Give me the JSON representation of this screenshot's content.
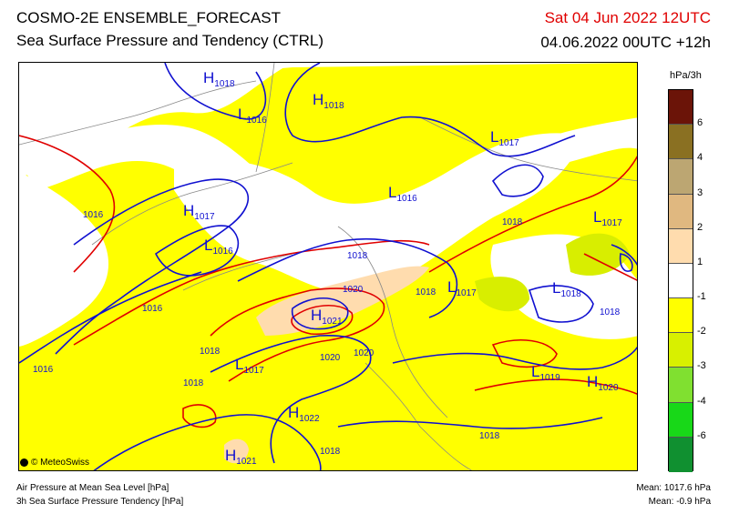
{
  "header": {
    "title_line1": "COSMO-2E ENSEMBLE_FORECAST",
    "title_line2": "Sea Surface Pressure and Tendency (CTRL)",
    "valid_time": "Sat 04 Jun 2022 12UTC",
    "run_time": "04.06.2022 00UTC +12h"
  },
  "legend": {
    "unit": "hPa/3h",
    "ticks": [
      "6",
      "4",
      "3",
      "2",
      "1",
      "-1",
      "-2",
      "-3",
      "-4",
      "-6"
    ],
    "colors": [
      "#6b1408",
      "#8a7022",
      "#bca672",
      "#e0b880",
      "#ffdcae",
      "#ffffff",
      "#ffff00",
      "#d8f000",
      "#80e030",
      "#18d818",
      "#109030"
    ]
  },
  "map": {
    "colors": {
      "low_tendency": "#ffff00",
      "mid_tendency": "#d8ee00",
      "rise_tendency": "#ffdcae",
      "isobar_blue": "#1010d0",
      "isobar_red": "#e00000",
      "terrain_lines": "#888888"
    },
    "pressure_labels": [
      {
        "letter": "H",
        "sub": "1018"
      },
      {
        "letter": "L",
        "sub": "1016"
      },
      {
        "letter": "H",
        "sub": "1018"
      },
      {
        "letter": "L",
        "sub": "1017"
      },
      {
        "letter": "L",
        "sub": "1016"
      },
      {
        "letter": "H",
        "sub": "1017"
      },
      {
        "letter": "L",
        "sub": "1016"
      },
      {
        "letter": "L",
        "sub": "1017"
      },
      {
        "letter": "L",
        "sub": "1018"
      },
      {
        "letter": "H",
        "sub": "1021"
      },
      {
        "letter": "L",
        "sub": "1017"
      },
      {
        "letter": "L",
        "sub": "1017"
      },
      {
        "letter": "L",
        "sub": "1019"
      },
      {
        "letter": "H",
        "sub": "1020"
      },
      {
        "letter": "H",
        "sub": "1022"
      },
      {
        "letter": "H",
        "sub": "1021"
      }
    ],
    "isobar_values": [
      "1016",
      "1016",
      "1016",
      "1018",
      "1018",
      "1018",
      "1020",
      "1018",
      "1018",
      "1020",
      "1020",
      "1018",
      "1018",
      "1018",
      "1018"
    ]
  },
  "brand": {
    "name": "© MeteoSwiss"
  },
  "footer": {
    "left_line1": "Air Pressure at Mean Sea Level [hPa]",
    "left_line2": "3h Sea Surface Pressure Tendency [hPa]",
    "right_line1": "Mean: 1017.6 hPa",
    "right_line2": "Mean:  -0.9 hPa"
  }
}
